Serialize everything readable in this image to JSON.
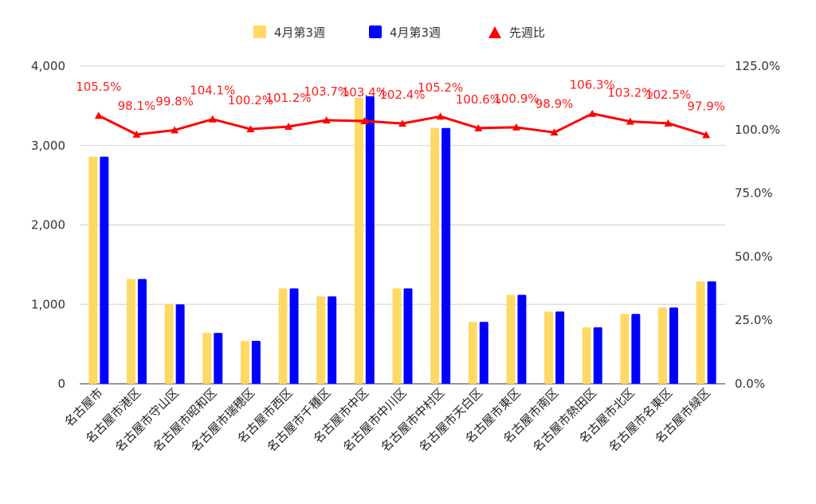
{
  "chart_data": {
    "type": "bar",
    "categories": [
      "名古屋市",
      "名古屋市港区",
      "名古屋市守山区",
      "名古屋市昭和区",
      "名古屋市瑞穂区",
      "名古屋市西区",
      "名古屋市千種区",
      "名古屋市中区",
      "名古屋市中川区",
      "名古屋市中村区",
      "名古屋市天白区",
      "名古屋市東区",
      "名古屋市南区",
      "名古屋市熱田区",
      "名古屋市北区",
      "名古屋市名東区",
      "名古屋市緑区"
    ],
    "series": [
      {
        "name": "4月第3週",
        "kind": "bar",
        "axis": "left",
        "color": "#ffd966",
        "values": [
          2860,
          1320,
          1000,
          640,
          540,
          1200,
          1100,
          3600,
          1200,
          3220,
          780,
          1120,
          910,
          710,
          880,
          960,
          1290
        ]
      },
      {
        "name": "4月第3週",
        "kind": "bar",
        "axis": "left",
        "color": "#0000ff",
        "values": [
          2860,
          1320,
          1000,
          640,
          540,
          1200,
          1100,
          3620,
          1200,
          3220,
          780,
          1120,
          910,
          710,
          880,
          960,
          1290
        ]
      },
      {
        "name": "先週比",
        "kind": "line",
        "axis": "right",
        "color": "#ff0000",
        "values": [
          105.5,
          98.1,
          99.8,
          104.1,
          100.2,
          101.2,
          103.7,
          103.4,
          102.4,
          105.2,
          100.6,
          100.9,
          98.9,
          106.3,
          103.2,
          102.5,
          97.9
        ],
        "labels": [
          "105.5%",
          "98.1%",
          "99.8%",
          "104.1%",
          "100.2%",
          "101.2%",
          "103.7%",
          "103.4%",
          "102.4%",
          "105.2%",
          "100.6%",
          "100.9%",
          "98.9%",
          "106.3%",
          "103.2%",
          "102.5%",
          "97.9%"
        ]
      }
    ],
    "yleft": {
      "lim": [
        0,
        4000
      ],
      "ticks": [
        0,
        1000,
        2000,
        3000,
        4000
      ],
      "tick_labels": [
        "0",
        "1,000",
        "2,000",
        "3,000",
        "4,000"
      ]
    },
    "yright": {
      "lim": [
        0,
        125
      ],
      "ticks": [
        0,
        25,
        50,
        75,
        100,
        125
      ],
      "tick_labels": [
        "0.0%",
        "25.0%",
        "50.0%",
        "75.0%",
        "100.0%",
        "125.0%"
      ]
    },
    "title": "",
    "xlabel": "",
    "ylabel": "",
    "grid": true,
    "legend": "top-center"
  }
}
